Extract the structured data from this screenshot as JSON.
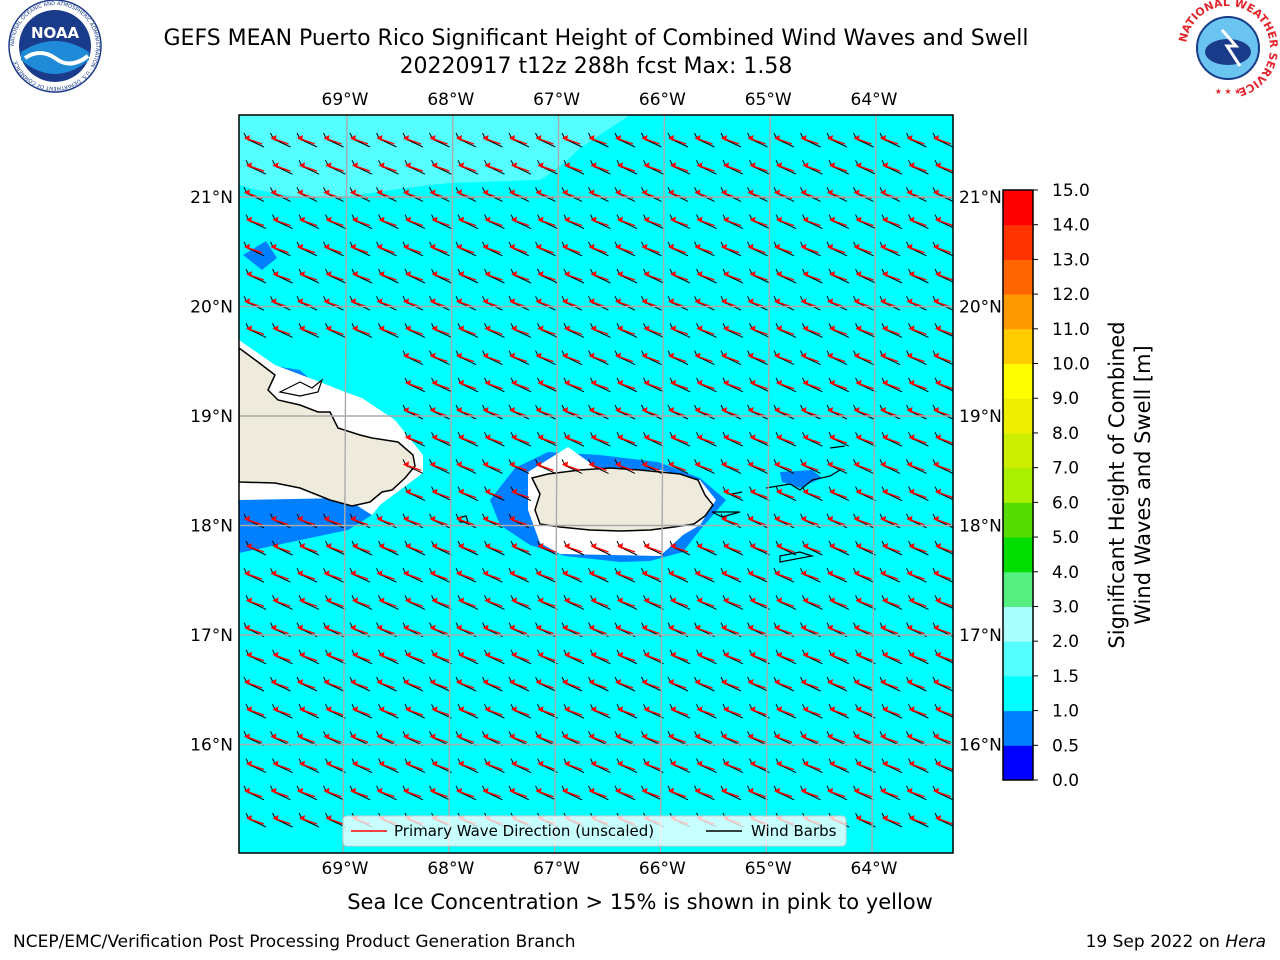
{
  "title": {
    "line1": "GEFS MEAN Puerto Rico Significant Height of Combined Wind Waves and Swell",
    "line2": "20220917 t12z 288h fcst   Max: 1.58"
  },
  "logos": {
    "noaa_text": "NOAA",
    "noaa_ring_text": "NATIONAL OCEANIC AND ATMOSPHERIC ADMINISTRATION · U.S. DEPARTMENT OF COMMERCE",
    "nws_ring_text": "NATIONAL WEATHER SERVICE"
  },
  "map": {
    "lon_labels": [
      "69°W",
      "68°W",
      "67°W",
      "66°W",
      "65°W",
      "64°W"
    ],
    "lat_labels": [
      "21°N",
      "20°N",
      "19°N",
      "18°N",
      "17°N",
      "16°N"
    ],
    "lon_values": [
      -69,
      -68,
      -67,
      -66,
      -65,
      -64
    ],
    "lat_values": [
      21,
      20,
      19,
      18,
      17,
      16
    ],
    "extent": {
      "lon_min": -70,
      "lon_max": -63.25,
      "lat_min": 15.05,
      "lat_max": 21.75
    },
    "ocean_color": "#00ffff",
    "light_color": "#55ffff",
    "near_shore_color": "#0080ff",
    "land_color": "#efebdc",
    "arrow_color": "#ff0000",
    "barb_color": "#000000"
  },
  "legend": {
    "wave_label": "Primary Wave Direction (unscaled)",
    "barb_label": "Wind Barbs"
  },
  "colorbar": {
    "title_line1": "Significant Height of Combined",
    "title_line2": "Wind Waves and Swell [m]",
    "labels": [
      "0.0",
      "0.5",
      "1.0",
      "1.5",
      "2.0",
      "3.0",
      "4.0",
      "5.0",
      "6.0",
      "7.0",
      "8.0",
      "9.0",
      "10.0",
      "11.0",
      "12.0",
      "13.0",
      "14.0",
      "15.0"
    ],
    "colors": [
      "#0000ff",
      "#0080ff",
      "#00ffff",
      "#55ffff",
      "#aaffff",
      "#55ee80",
      "#00dd00",
      "#55dd00",
      "#aaee00",
      "#ccee00",
      "#eeee00",
      "#ffff00",
      "#ffcc00",
      "#ff9900",
      "#ff6600",
      "#ff3300",
      "#ff0000"
    ]
  },
  "sea_ice_note": "Sea Ice Concentration > 15% is shown in pink to yellow",
  "footer": {
    "left": "NCEP/EMC/Verification Post Processing Product Generation Branch",
    "right_date": "19 Sep 2022 on ",
    "right_host": "Hera"
  }
}
